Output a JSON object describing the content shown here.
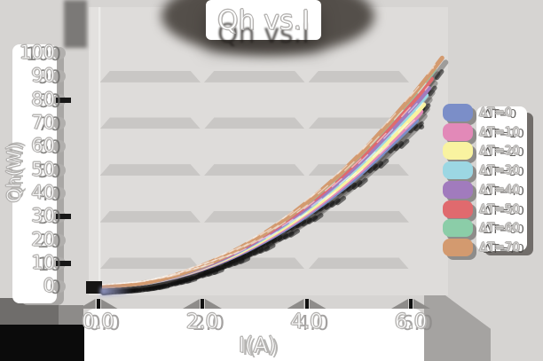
{
  "title": "Qh vs.I",
  "axes": {
    "x": {
      "label": "I(A)",
      "ticks": [
        {
          "label": "0.0",
          "value": 0
        },
        {
          "label": "2.0",
          "value": 2
        },
        {
          "label": "4.0",
          "value": 4
        },
        {
          "label": "6.0",
          "value": 6
        }
      ]
    },
    "y": {
      "label": "Qh(W)",
      "ticks": [
        {
          "label": "0",
          "value": 0
        },
        {
          "label": "10",
          "value": 10
        },
        {
          "label": "20",
          "value": 20
        },
        {
          "label": "30",
          "value": 30
        },
        {
          "label": "40",
          "value": 40
        },
        {
          "label": "50",
          "value": 50
        },
        {
          "label": "60",
          "value": 60
        },
        {
          "label": "70",
          "value": 70
        },
        {
          "label": "80",
          "value": 80
        },
        {
          "label": "90",
          "value": 90
        },
        {
          "label": "100",
          "value": 100
        }
      ]
    }
  },
  "legend": {
    "position": "right",
    "items": [
      "ΔT=0",
      "ΔT=10",
      "ΔT=20",
      "ΔT=30",
      "ΔT=40",
      "ΔT=50",
      "ΔT=60",
      "ΔT=70"
    ]
  },
  "grid_band_values": [
    90,
    70,
    50,
    30,
    10
  ],
  "chart_data": {
    "type": "line",
    "title": "Qh vs.I",
    "xlabel": "I(A)",
    "ylabel": "Qh(W)",
    "xlim": [
      0,
      6.8
    ],
    "ylim": [
      0,
      105
    ],
    "grid": "horizontal-bands",
    "legend_position": "right",
    "series": [
      {
        "name": "ΔT=0",
        "color": "#7b8ec8",
        "x": [
          0,
          1,
          2,
          3,
          4,
          5,
          6,
          6.1
        ],
        "y": [
          0,
          1.9,
          7.6,
          17.2,
          30.5,
          47.7,
          68.7,
          71
        ]
      },
      {
        "name": "ΔT=10",
        "color": "#e289b8",
        "x": [
          0,
          1,
          2,
          3,
          4,
          5,
          6,
          6.2
        ],
        "y": [
          0,
          2.0,
          7.8,
          17.6,
          31.2,
          48.8,
          70.2,
          75
        ]
      },
      {
        "name": "ΔT=20",
        "color": "#f9f3a0",
        "x": [
          0,
          1,
          2,
          3,
          4,
          5,
          6,
          6.25
        ],
        "y": [
          0,
          2.0,
          8.0,
          18.0,
          31.9,
          49.9,
          71.9,
          78
        ]
      },
      {
        "name": "ΔT=30",
        "color": "#9cd7e3",
        "x": [
          0,
          1,
          2,
          3,
          4,
          5,
          6,
          6.3
        ],
        "y": [
          0,
          2.1,
          8.3,
          18.6,
          33.1,
          51.7,
          74.4,
          82
        ]
      },
      {
        "name": "ΔT=40",
        "color": "#a17bbd",
        "x": [
          0,
          1,
          2,
          3,
          4,
          5,
          6,
          6.35
        ],
        "y": [
          0,
          2.1,
          8.4,
          19.0,
          33.7,
          52.7,
          75.9,
          85
        ]
      },
      {
        "name": "ΔT=50",
        "color": "#e06a6e",
        "x": [
          0,
          1,
          2,
          3,
          4,
          5,
          6,
          6.4
        ],
        "y": [
          0,
          2.2,
          8.7,
          19.6,
          34.8,
          54.3,
          78.2,
          89
        ]
      },
      {
        "name": "ΔT=60",
        "color": "#8bcda8",
        "x": [
          0,
          1,
          2,
          3,
          4,
          5,
          6,
          6.45
        ],
        "y": [
          0,
          2.2,
          8.9,
          20.1,
          35.8,
          55.9,
          80.5,
          93
        ]
      },
      {
        "name": "ΔT=70",
        "color": "#d39a6f",
        "x": [
          0,
          1,
          2,
          3,
          4,
          5,
          6,
          6.6
        ],
        "y": [
          0,
          2.2,
          9.0,
          20.2,
          36.0,
          56.2,
          81.0,
          98
        ]
      }
    ]
  }
}
